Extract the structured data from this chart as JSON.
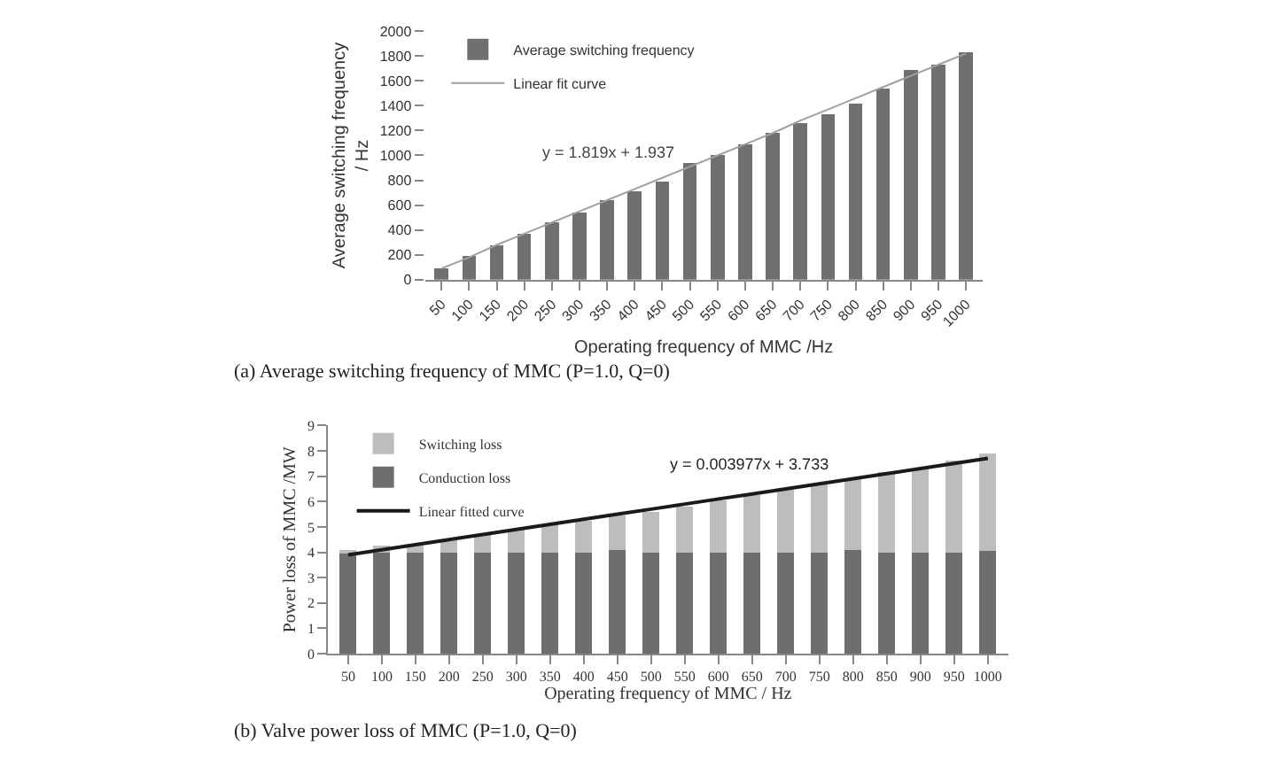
{
  "chart_data": [
    {
      "type": "bar",
      "xlabel": "Operating frequency of MMC /Hz",
      "ylabel": "Average switching frequency\n/ Hz",
      "categories": [
        "50",
        "100",
        "150",
        "200",
        "250",
        "300",
        "350",
        "400",
        "450",
        "500",
        "550",
        "600",
        "650",
        "700",
        "750",
        "800",
        "850",
        "900",
        "950",
        "1000"
      ],
      "series": [
        {
          "name": "Average switching frequency",
          "color": "#707070",
          "values": [
            90,
            190,
            280,
            370,
            460,
            540,
            640,
            710,
            790,
            940,
            1000,
            1090,
            1180,
            1260,
            1330,
            1420,
            1540,
            1690,
            1730,
            1830
          ]
        },
        {
          "name": "Linear fit curve",
          "type": "line",
          "color": "#a0a0a0",
          "values": [
            90,
            180,
            280,
            370,
            460,
            550,
            640,
            730,
            820,
            910,
            1000,
            1090,
            1180,
            1280,
            1370,
            1460,
            1550,
            1640,
            1730,
            1820
          ]
        }
      ],
      "ylim": [
        0,
        2000
      ],
      "yticks": [
        0,
        200,
        400,
        600,
        800,
        1000,
        1200,
        1400,
        1600,
        1800,
        2000
      ],
      "legend": "top left",
      "marker": "none",
      "annotations": [
        "y = 1.819x + 1.937",
        "(a) Average switching frequency of MMC (P=1.0, Q=0)"
      ]
    },
    {
      "type": "bar",
      "stacked": true,
      "xlabel": "Operating frequency of MMC / Hz",
      "ylabel": "Power loss of MMC /MW",
      "categories": [
        "50",
        "100",
        "150",
        "200",
        "250",
        "300",
        "350",
        "400",
        "450",
        "500",
        "550",
        "600",
        "650",
        "700",
        "750",
        "800",
        "850",
        "900",
        "950",
        "1000"
      ],
      "series": [
        {
          "name": "Conduction loss",
          "color": "#6e6e6e",
          "values": [
            3.95,
            4,
            4,
            4,
            4,
            4,
            4,
            4,
            4.1,
            4,
            4,
            4,
            4,
            4,
            4,
            4.1,
            4,
            4,
            4,
            4.05
          ]
        },
        {
          "name": "Switching loss",
          "color": "#bdbdbd",
          "values": [
            0.15,
            0.25,
            0.35,
            0.5,
            0.7,
            0.9,
            1.1,
            1.25,
            1.35,
            1.6,
            1.8,
            2.05,
            2.25,
            2.45,
            2.7,
            2.8,
            3.15,
            3.3,
            3.6,
            3.85
          ]
        },
        {
          "name": "Linear fitted curve",
          "type": "line",
          "color": "#1a1a1a",
          "values": [
            3.9,
            4.1,
            4.3,
            4.5,
            4.7,
            4.9,
            5.1,
            5.3,
            5.5,
            5.7,
            5.9,
            6.1,
            6.3,
            6.5,
            6.7,
            6.9,
            7.1,
            7.3,
            7.5,
            7.7
          ]
        }
      ],
      "ylim": [
        0,
        9
      ],
      "yticks": [
        0,
        1,
        2,
        3,
        4,
        5,
        6,
        7,
        8,
        9
      ],
      "legend": "top left",
      "marker": "none",
      "annotations": [
        "y = 0.003977x + 3.733",
        "(b) Valve power loss of MMC (P=1.0, Q=0)"
      ]
    }
  ]
}
